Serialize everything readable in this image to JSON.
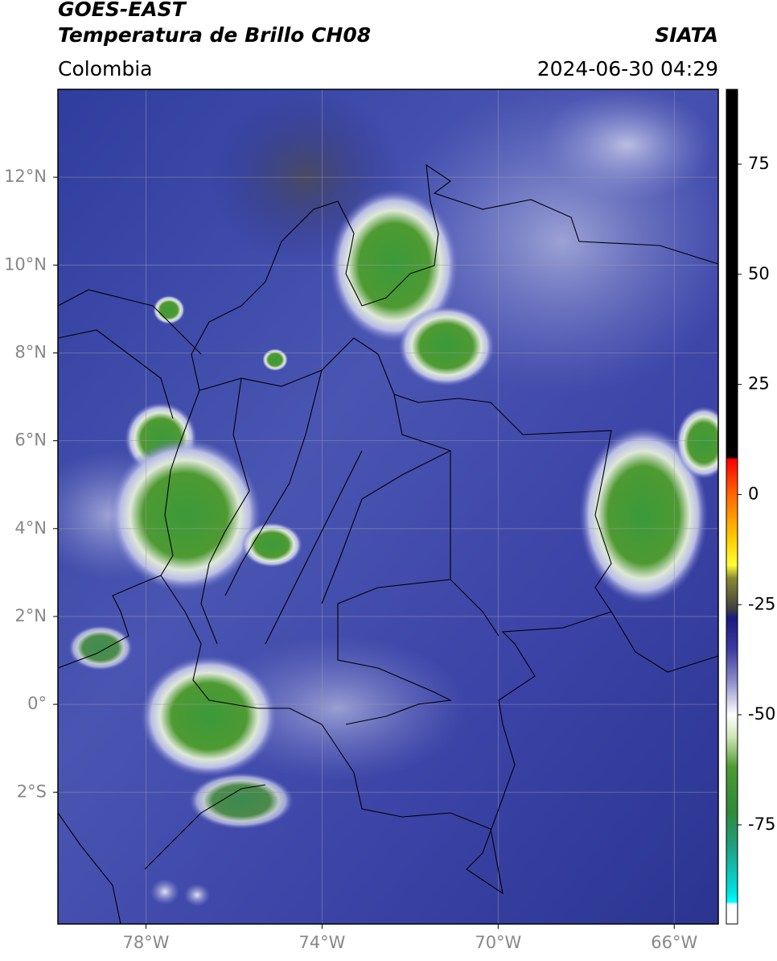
{
  "chart_data": {
    "type": "satellite-map",
    "title": "GOES-EAST",
    "subtitle": "Temperatura de Brillo CH08",
    "source": "SIATA",
    "region": "Colombia",
    "timestamp": "2024-06-30 04:29",
    "xlim": [
      -80,
      -65
    ],
    "ylim": [
      -5,
      14
    ],
    "xticks": [
      {
        "value": -78,
        "label": "78°W"
      },
      {
        "value": -74,
        "label": "74°W"
      },
      {
        "value": -70,
        "label": "70°W"
      },
      {
        "value": -66,
        "label": "66°W"
      }
    ],
    "yticks": [
      {
        "value": 12,
        "label": "12°N"
      },
      {
        "value": 10,
        "label": "10°N"
      },
      {
        "value": 8,
        "label": "8°N"
      },
      {
        "value": 6,
        "label": "6°N"
      },
      {
        "value": 4,
        "label": "4°N"
      },
      {
        "value": 2,
        "label": "2°N"
      },
      {
        "value": 0,
        "label": "0°"
      },
      {
        "value": -2,
        "label": "2°S"
      }
    ],
    "grid": true,
    "colorbar": {
      "lim": [
        -97.5,
        92
      ],
      "ticks": [
        75,
        50,
        25,
        0,
        -25,
        -50,
        -75
      ],
      "stops": [
        {
          "value": 92,
          "color": "#000000"
        },
        {
          "value": 8.5,
          "color": "#000000"
        },
        {
          "value": 8,
          "color": "#ff0000"
        },
        {
          "value": 0,
          "color": "#ff6600"
        },
        {
          "value": -10,
          "color": "#ffcc00"
        },
        {
          "value": -16,
          "color": "#ffff33"
        },
        {
          "value": -19,
          "color": "#8a8a30"
        },
        {
          "value": -26,
          "color": "#404040"
        },
        {
          "value": -28,
          "color": "#1a1a80"
        },
        {
          "value": -35,
          "color": "#3a3aa0"
        },
        {
          "value": -42,
          "color": "#8888c8"
        },
        {
          "value": -50,
          "color": "#ffffff"
        },
        {
          "value": -55,
          "color": "#cfe6b8"
        },
        {
          "value": -62,
          "color": "#4d9a30"
        },
        {
          "value": -72,
          "color": "#2f8a3a"
        },
        {
          "value": -80,
          "color": "#20a080"
        },
        {
          "value": -90,
          "color": "#00e0e0"
        },
        {
          "value": -92.5,
          "color": "#00ffff"
        },
        {
          "value": -93,
          "color": "#ffffff"
        },
        {
          "value": -97.5,
          "color": "#ffffff"
        }
      ]
    }
  }
}
